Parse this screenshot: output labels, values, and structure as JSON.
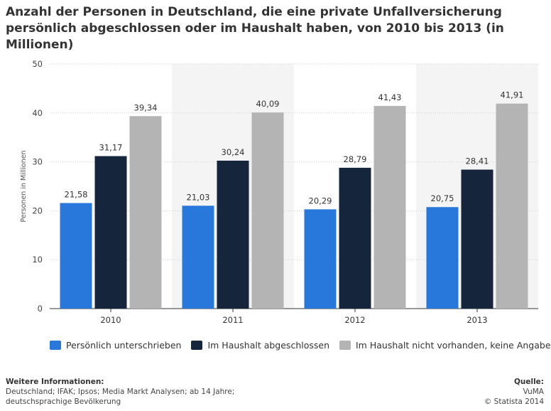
{
  "title": "Anzahl der Personen in Deutschland, die eine private Unfallversicherung persönlich abgeschlossen oder im Haushalt haben, von 2010 bis 2013 (in Millionen)",
  "chart_data": {
    "type": "bar",
    "categories": [
      "2010",
      "2011",
      "2012",
      "2013"
    ],
    "series": [
      {
        "name": "Persönlich unterschrieben",
        "color": "#2878dc",
        "values": [
          21.58,
          21.03,
          20.29,
          20.75
        ],
        "labels": [
          "21,58",
          "21,03",
          "20,29",
          "20,75"
        ]
      },
      {
        "name": "Im Haushalt abgeschlossen",
        "color": "#14253c",
        "values": [
          31.17,
          30.24,
          28.79,
          28.41
        ],
        "labels": [
          "31,17",
          "30,24",
          "28,79",
          "28,41"
        ]
      },
      {
        "name": "Im Haushalt nicht vorhanden, keine Angabe",
        "color": "#b4b4b4",
        "values": [
          39.34,
          40.09,
          41.43,
          41.91
        ],
        "labels": [
          "39,34",
          "40,09",
          "41,43",
          "41,91"
        ]
      }
    ],
    "ylabel": "Personen in Millionen",
    "ylim": [
      0,
      50
    ],
    "yticks": [
      0,
      10,
      20,
      30,
      40,
      50
    ],
    "ytick_labels": [
      "0",
      "10",
      "20",
      "30",
      "40",
      "50"
    ],
    "grid": true,
    "legend_position": "bottom"
  },
  "footer": {
    "info_heading": "Weitere Informationen:",
    "info_line1": "Deutschland; IFAK; Ipsos; Media Markt Analysen; ab 14 Jahre;",
    "info_line2": "deutschsprachige Bevölkerung",
    "source_heading": "Quelle:",
    "source_line1": "VuMA",
    "source_line2": "© Statista 2014"
  }
}
